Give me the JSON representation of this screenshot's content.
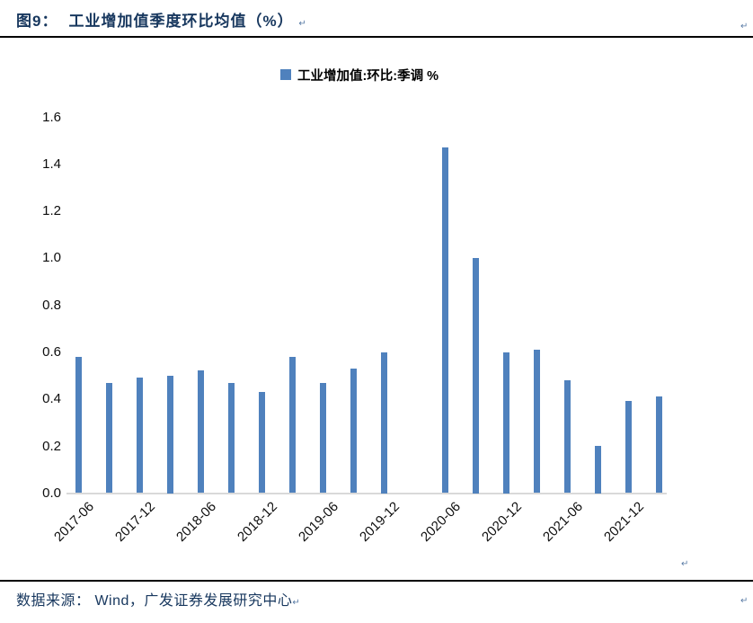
{
  "figure": {
    "label": "图9：",
    "title": "工业增加值季度环比均值（%）"
  },
  "footer": {
    "source_text": "数据来源： Wind，广发证券发展研究中心"
  },
  "marks": {
    "return_glyph": "↵"
  },
  "colors": {
    "bar": "#4F81BD",
    "title_text": "#17375E",
    "axis_line": "#D9D9D9",
    "header_rule": "#000000"
  },
  "chart_data": {
    "type": "bar",
    "title": "工业增加值季度环比均值（%）",
    "legend": "工业增加值:环比:季调 %",
    "legend_position": "top-center",
    "bar_color": "#4F81BD",
    "grid": false,
    "x": [
      "2017-06",
      "2017-09",
      "2017-12",
      "2018-03",
      "2018-06",
      "2018-09",
      "2018-12",
      "2019-03",
      "2019-06",
      "2019-09",
      "2019-12",
      "2020-03",
      "2020-06",
      "2020-09",
      "2020-12",
      "2021-03",
      "2021-06",
      "2021-09",
      "2021-12",
      "2022-03"
    ],
    "values": [
      0.58,
      0.47,
      0.49,
      0.5,
      0.52,
      0.47,
      0.43,
      0.58,
      0.47,
      0.53,
      0.6,
      null,
      1.47,
      1.0,
      0.6,
      0.61,
      0.48,
      0.2,
      0.39,
      0.41
    ],
    "x_tick_labels": [
      "2017-06",
      "2017-12",
      "2018-06",
      "2018-12",
      "2019-06",
      "2019-12",
      "2020-06",
      "2020-12",
      "2021-06",
      "2021-12"
    ],
    "y_ticks": [
      0.0,
      0.2,
      0.4,
      0.6,
      0.8,
      1.0,
      1.2,
      1.4,
      1.6
    ],
    "ylim": [
      0,
      1.6
    ],
    "xlabel": "",
    "ylabel": ""
  }
}
